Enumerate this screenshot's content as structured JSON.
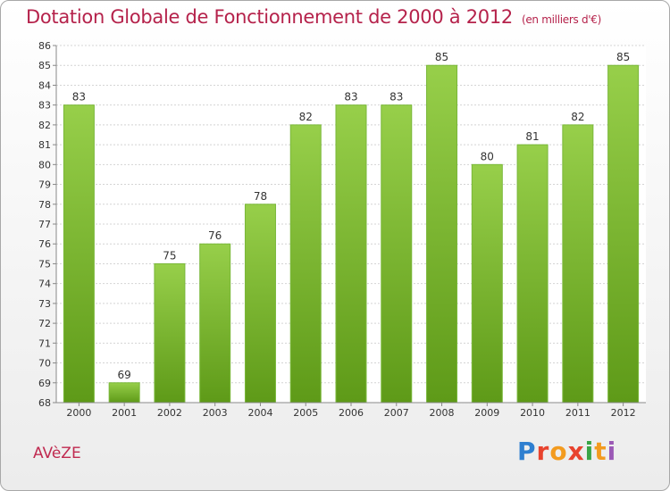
{
  "header": {
    "title": "Dotation Globale de Fonctionnement de 2000 à 2012",
    "subtitle": "(en milliers d'€)"
  },
  "footer": {
    "commune": "AVèZE",
    "brand_letters": [
      "P",
      "r",
      "o",
      "x",
      "i",
      "t",
      "i"
    ],
    "brand_colors": [
      "#2f7fd0",
      "#e8432e",
      "#f39b1f",
      "#e8432e",
      "#3aa546",
      "#f39b1f",
      "#9b59b6"
    ]
  },
  "chart_data": {
    "type": "bar",
    "categories": [
      "2000",
      "2001",
      "2002",
      "2003",
      "2004",
      "2005",
      "2006",
      "2007",
      "2008",
      "2009",
      "2010",
      "2011",
      "2012"
    ],
    "values": [
      83,
      69,
      75,
      76,
      78,
      82,
      83,
      83,
      85,
      80,
      81,
      82,
      85
    ],
    "title": "Dotation Globale de Fonctionnement de 2000 à 2012",
    "subtitle": "(en milliers d'€)",
    "ylim": [
      68,
      86
    ],
    "yticks": [
      68,
      69,
      70,
      71,
      72,
      73,
      74,
      75,
      76,
      77,
      78,
      79,
      80,
      81,
      82,
      83,
      84,
      85,
      86
    ],
    "grid": true,
    "bar_color": "#8cc63f",
    "bar_color_dark": "#5f9a1c"
  }
}
